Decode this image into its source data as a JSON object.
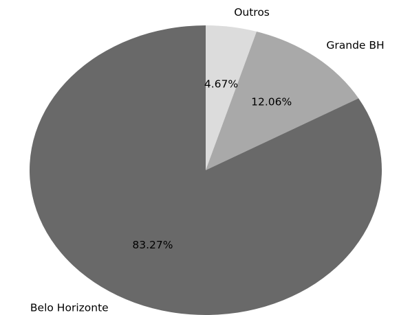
{
  "chart_data": {
    "type": "pie",
    "title": "",
    "start_angle_deg": 90,
    "direction": "clockwise",
    "slices": [
      {
        "label": "Outros",
        "value": 4.67,
        "pct_text": "4.67%",
        "color": "#dcdcdc"
      },
      {
        "label": "Grande BH",
        "value": 12.06,
        "pct_text": "12.06%",
        "color": "#a9a9a9"
      },
      {
        "label": "Belo Horizonte",
        "value": 83.27,
        "pct_text": "83.27%",
        "color": "#696969"
      }
    ]
  }
}
